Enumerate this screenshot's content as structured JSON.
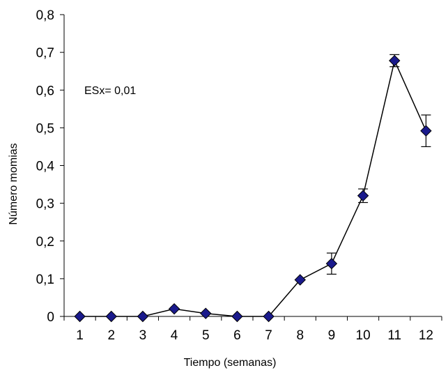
{
  "chart_data": {
    "type": "line",
    "title": "",
    "xlabel": "Tiempo (semanas)",
    "ylabel": "Número momias",
    "annotation": "ESx= 0,01",
    "x": [
      1,
      2,
      3,
      4,
      5,
      6,
      7,
      8,
      9,
      10,
      11,
      12
    ],
    "categories": [
      "1",
      "2",
      "3",
      "4",
      "5",
      "6",
      "7",
      "8",
      "9",
      "10",
      "11",
      "12"
    ],
    "series": [
      {
        "values": [
          0,
          0,
          0,
          0.02,
          0.008,
          0,
          0,
          0.097,
          0.14,
          0.32,
          0.678,
          0.492
        ],
        "error_low": [
          0,
          0,
          0,
          0,
          0,
          0,
          0,
          0,
          0.028,
          0.018,
          0.016,
          0.042
        ],
        "error_high": [
          0,
          0,
          0,
          0,
          0,
          0,
          0,
          0,
          0.028,
          0.018,
          0.016,
          0.042
        ],
        "marker": "diamond",
        "marker_color": "#1a1a8c",
        "line_color": "#000000"
      }
    ],
    "ylim": [
      0,
      0.8
    ],
    "yticks": [
      0,
      0.1,
      0.2,
      0.3,
      0.4,
      0.5,
      0.6,
      0.7,
      0.8
    ],
    "ytick_labels": [
      "0",
      "0,1",
      "0,2",
      "0,3",
      "0,4",
      "0,5",
      "0,6",
      "0,7",
      "0,8"
    ],
    "grid": false,
    "legend": "none"
  }
}
